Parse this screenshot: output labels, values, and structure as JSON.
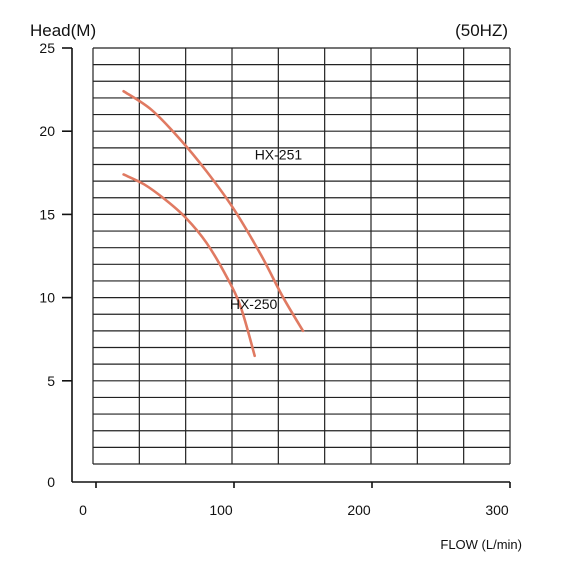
{
  "chart_data": {
    "type": "line",
    "title_left": "Head(M)",
    "title_right": "(50HZ)",
    "xlabel": "FLOW (L/min)",
    "ylabel": "Head(M)",
    "xlim": [
      0,
      300
    ],
    "ylim": [
      0,
      25
    ],
    "x_ticks": [
      0,
      100,
      200,
      300
    ],
    "x_tick_labels": [
      "0",
      "100",
      "200",
      "300"
    ],
    "y_ticks": [
      5,
      10,
      15,
      20,
      25
    ],
    "y_tick_labels": [
      "5",
      "10",
      "15",
      "20",
      "25"
    ],
    "y_zero_label": "0",
    "grid": true,
    "series": [
      {
        "name": "HX-251",
        "color": "#e07a62",
        "x": [
          20,
          40,
          60,
          80,
          100,
          120,
          135,
          150
        ],
        "y": [
          22.4,
          21.3,
          19.6,
          17.6,
          15.3,
          12.5,
          10.1,
          8.0
        ]
      },
      {
        "name": "HX-250",
        "color": "#e07a62",
        "x": [
          20,
          35,
          50,
          65,
          80,
          95,
          105,
          115
        ],
        "y": [
          17.4,
          16.8,
          15.9,
          14.8,
          13.3,
          11.2,
          9.4,
          6.5
        ]
      }
    ],
    "annotations": [
      {
        "text": "HX-251",
        "x": 115,
        "y": 18.3
      },
      {
        "text": "HX-250",
        "x": 97,
        "y": 9.3
      }
    ]
  }
}
